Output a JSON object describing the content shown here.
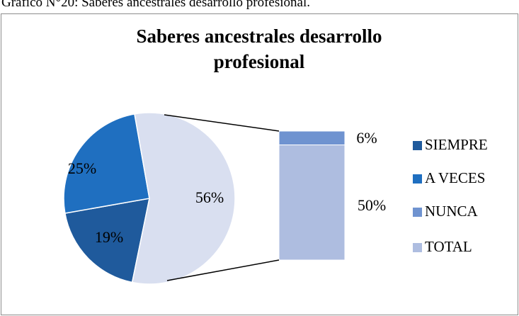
{
  "caption": "Gráfico N°20: Saberes ancestrales desarrollo profesional.",
  "chart_data": {
    "type": "bar_of_pie",
    "title": "Saberes ancestrales desarrollo profesional",
    "pie": {
      "categories": [
        "SIEMPRE",
        "A VECES",
        null
      ],
      "values": [
        19,
        25,
        56
      ],
      "value_labels": [
        "19%",
        "25%",
        "56%"
      ],
      "colors": [
        "#1f5a9c",
        "#1f6fc0",
        "#d9dff0"
      ]
    },
    "bar": {
      "categories": [
        "NUNCA",
        "TOTAL"
      ],
      "values": [
        6,
        50
      ],
      "value_labels": [
        "6%",
        "50%"
      ],
      "colors": [
        "#6f93d0",
        "#aebde0"
      ]
    },
    "legend": "right"
  }
}
